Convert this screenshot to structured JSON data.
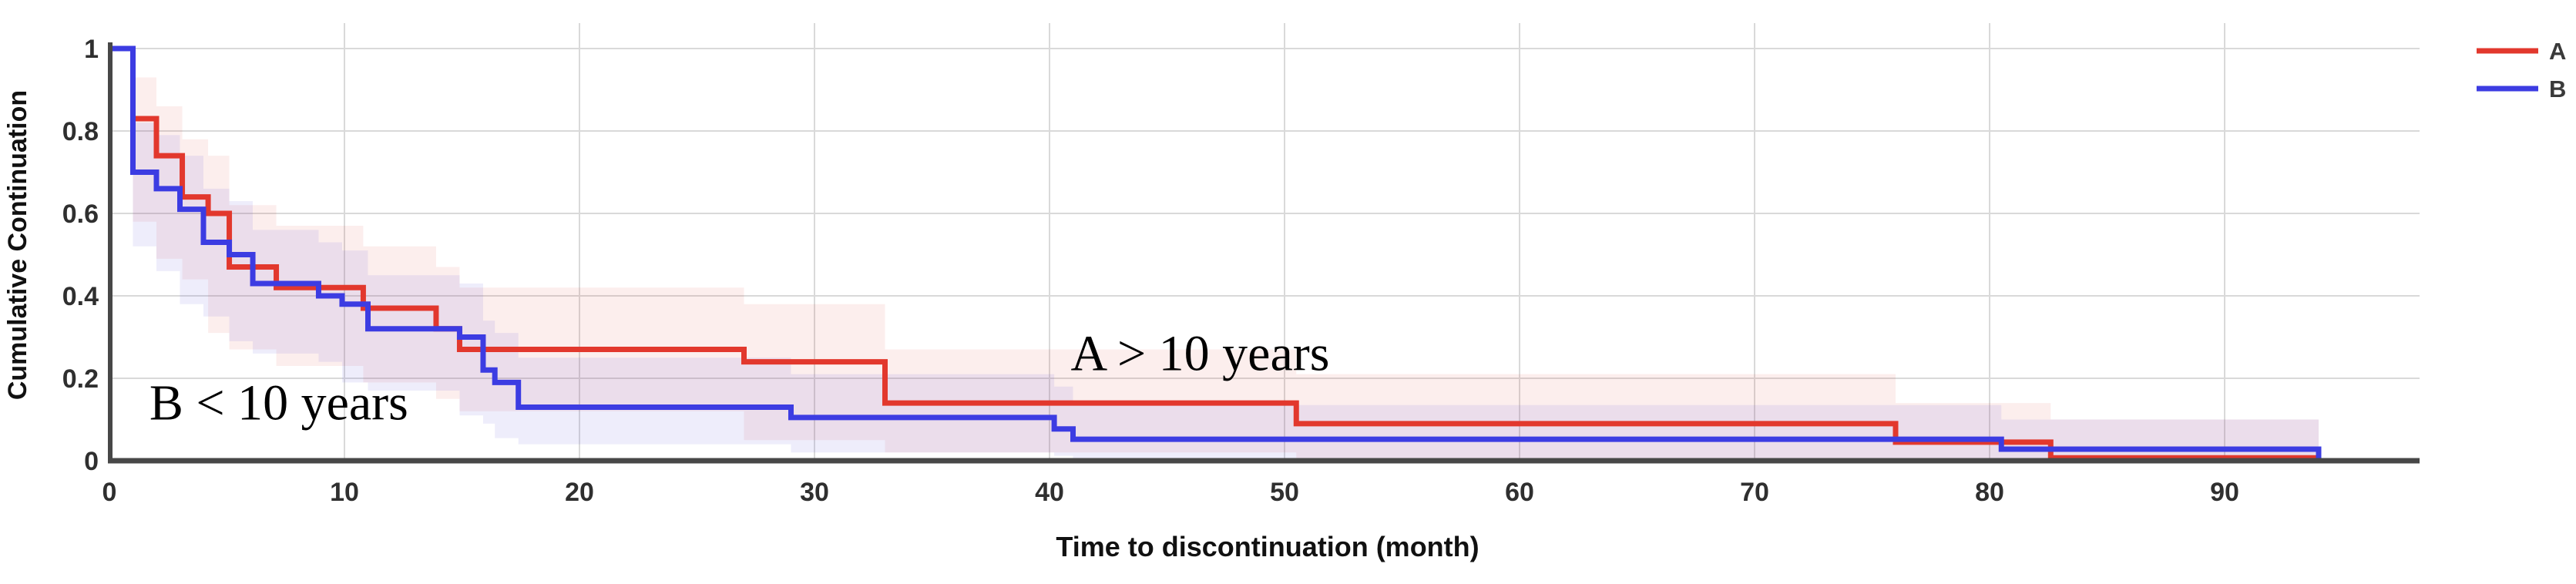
{
  "figure": {
    "background": "#ffffff",
    "axis_color": "#474747",
    "grid_color": "#d9d9d9",
    "tick_color": "#2f2f2f"
  },
  "chart_data": {
    "type": "line",
    "subtype": "kaplan-meier-step",
    "title": "",
    "xlabel": "Time to discontinuation (month)",
    "ylabel": "Cumulative Continuation",
    "xlim": [
      0,
      98
    ],
    "ylim": [
      0,
      1.04
    ],
    "xticks": [
      0,
      10,
      20,
      30,
      40,
      50,
      60,
      70,
      80,
      90
    ],
    "yticks": [
      0,
      0.2,
      0.4,
      0.6,
      0.8,
      1
    ],
    "ytick_labels": [
      "0",
      "0.2",
      "0.4",
      "0.6",
      "0.8",
      "1"
    ],
    "grid": true,
    "legend": {
      "position": "top-right",
      "entries": [
        {
          "label": "A",
          "color": "#e2382d"
        },
        {
          "label": "B",
          "color": "#3c3ce2"
        }
      ]
    },
    "annotations": [
      {
        "text": "B < 10 years",
        "x_month": 1.7,
        "y_value": 0.1
      },
      {
        "text": "A > 10 years",
        "x_month": 40.9,
        "y_value": 0.22
      }
    ],
    "series": [
      {
        "name": "A",
        "color": "#e2382d",
        "band_color": "rgba(224,70,60,0.09)",
        "end_month": 94,
        "end_drop": false,
        "steps": [
          [
            0,
            1.0
          ],
          [
            1,
            0.83
          ],
          [
            2,
            0.74
          ],
          [
            3.1,
            0.64
          ],
          [
            4.2,
            0.6
          ],
          [
            5.1,
            0.47
          ],
          [
            7.1,
            0.42
          ],
          [
            10.8,
            0.37
          ],
          [
            13.9,
            0.32
          ],
          [
            14.9,
            0.27
          ],
          [
            27,
            0.24
          ],
          [
            33,
            0.14
          ],
          [
            50.5,
            0.09
          ],
          [
            76,
            0.045
          ],
          [
            82.6,
            0.007
          ]
        ],
        "band": [
          [
            1,
            0.93,
            0.68
          ],
          [
            2,
            0.86,
            0.58
          ],
          [
            3.1,
            0.78,
            0.49
          ],
          [
            4.2,
            0.74,
            0.44
          ],
          [
            5.1,
            0.62,
            0.31
          ],
          [
            7.1,
            0.57,
            0.27
          ],
          [
            10.8,
            0.52,
            0.23
          ],
          [
            13.9,
            0.47,
            0.19
          ],
          [
            14.9,
            0.42,
            0.15
          ],
          [
            27,
            0.38,
            0.12
          ],
          [
            33,
            0.27,
            0.05
          ],
          [
            50.5,
            0.21,
            0.02
          ],
          [
            76,
            0.14,
            0.005
          ],
          [
            82.6,
            0.1,
            0.0
          ]
        ]
      },
      {
        "name": "B",
        "color": "#3c3ce2",
        "band_color": "rgba(100,90,215,0.11)",
        "end_month": 94,
        "end_drop": true,
        "steps": [
          [
            0,
            1.0
          ],
          [
            1,
            0.7
          ],
          [
            2,
            0.66
          ],
          [
            3,
            0.61
          ],
          [
            4,
            0.53
          ],
          [
            5.1,
            0.5
          ],
          [
            6.1,
            0.43
          ],
          [
            8.9,
            0.4
          ],
          [
            9.9,
            0.38
          ],
          [
            11,
            0.32
          ],
          [
            14.9,
            0.3
          ],
          [
            15.9,
            0.22
          ],
          [
            16.4,
            0.19
          ],
          [
            17.4,
            0.13
          ],
          [
            29,
            0.105
          ],
          [
            40.2,
            0.077
          ],
          [
            41,
            0.052
          ],
          [
            80.5,
            0.028
          ]
        ],
        "band": [
          [
            1,
            0.82,
            0.55
          ],
          [
            2,
            0.79,
            0.52
          ],
          [
            3,
            0.74,
            0.46
          ],
          [
            4,
            0.66,
            0.38
          ],
          [
            5.1,
            0.63,
            0.35
          ],
          [
            6.1,
            0.56,
            0.29
          ],
          [
            8.9,
            0.53,
            0.26
          ],
          [
            9.9,
            0.51,
            0.24
          ],
          [
            11,
            0.45,
            0.19
          ],
          [
            14.9,
            0.43,
            0.17
          ],
          [
            15.9,
            0.34,
            0.11
          ],
          [
            16.4,
            0.31,
            0.09
          ],
          [
            17.4,
            0.25,
            0.055
          ],
          [
            29,
            0.21,
            0.04
          ],
          [
            40.2,
            0.18,
            0.02
          ],
          [
            41,
            0.135,
            0.012
          ],
          [
            80.5,
            0.1,
            0.0
          ]
        ]
      }
    ]
  }
}
